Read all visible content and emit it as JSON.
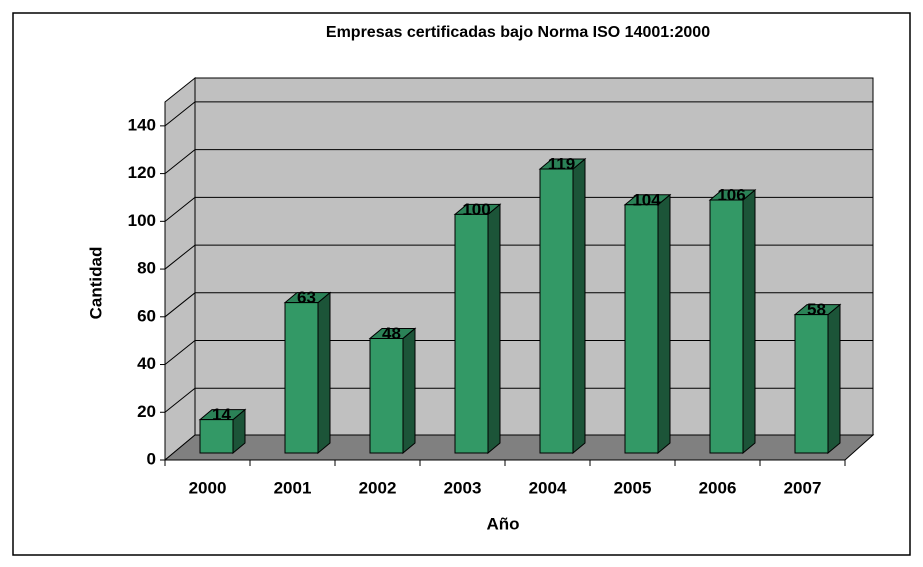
{
  "chart_data": {
    "type": "bar",
    "title": "Empresas certificadas bajo Norma ISO 14001:2000",
    "x_label": "Año",
    "y_label": "Cantidad",
    "categories": [
      "2000",
      "2001",
      "2002",
      "2003",
      "2004",
      "2005",
      "2006",
      "2007"
    ],
    "values": [
      14,
      63,
      48,
      100,
      119,
      104,
      106,
      58
    ],
    "color": "#339966",
    "ylim": [
      0,
      150
    ],
    "yticks": [
      0,
      20,
      40,
      60,
      80,
      100,
      120,
      140
    ],
    "grid": true
  }
}
